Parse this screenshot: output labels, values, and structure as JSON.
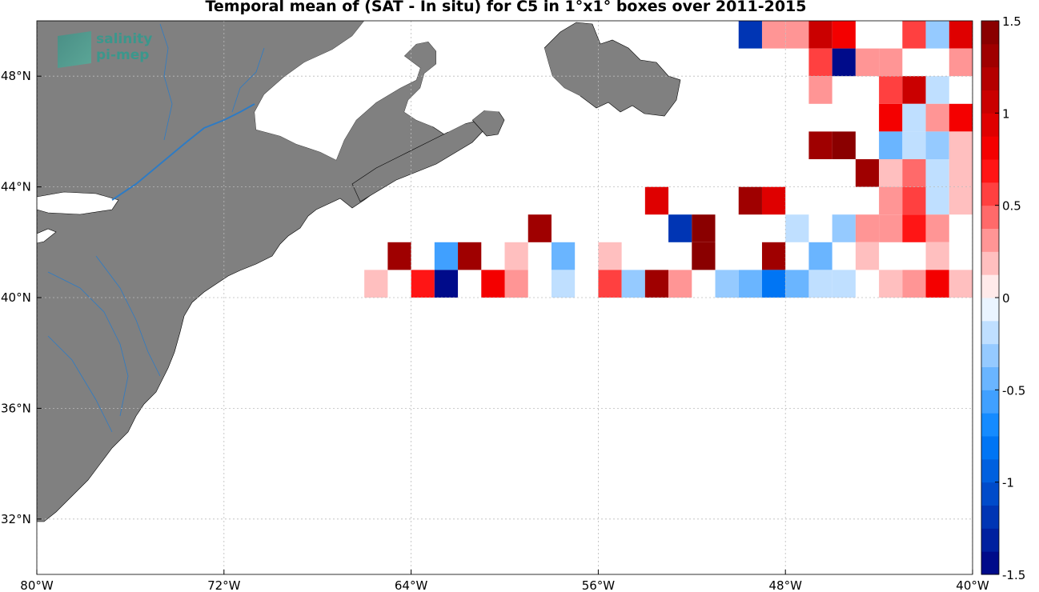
{
  "title": "Temporal mean of (SAT - In situ) for C5 in 1°x1° boxes over 2011-2015",
  "logo": {
    "line1": "salinity",
    "line2": "pi-mep"
  },
  "map": {
    "lon_range": [
      -80,
      -40
    ],
    "lat_range": [
      30,
      50
    ],
    "lon_ticks": [
      {
        "lon": -80,
        "label": "80°W"
      },
      {
        "lon": -72,
        "label": "72°W"
      },
      {
        "lon": -64,
        "label": "64°W"
      },
      {
        "lon": -56,
        "label": "56°W"
      },
      {
        "lon": -48,
        "label": "48°W"
      },
      {
        "lon": -40,
        "label": "40°W"
      }
    ],
    "lat_ticks": [
      {
        "lat": 32,
        "label": "32°N"
      },
      {
        "lat": 36,
        "label": "36°N"
      },
      {
        "lat": 40,
        "label": "40°N"
      },
      {
        "lat": 44,
        "label": "44°N"
      },
      {
        "lat": 48,
        "label": "48°N"
      }
    ],
    "land_color": "#808080",
    "river_color": "#2e7bc4",
    "grid": true
  },
  "colorbar": {
    "min": -1.5,
    "max": 1.5,
    "levels": 24,
    "ticks": [
      {
        "v": 1.5,
        "label": "1.5"
      },
      {
        "v": 1,
        "label": "1"
      },
      {
        "v": 0.5,
        "label": "0.5"
      },
      {
        "v": 0,
        "label": "0"
      },
      {
        "v": -0.5,
        "label": "-0.5"
      },
      {
        "v": -1,
        "label": "-1"
      },
      {
        "v": -1.5,
        "label": "-1.5"
      }
    ],
    "low_color": "#00007f",
    "mid_color": "#ffffff",
    "high_color": "#7f0000"
  },
  "chart_data": {
    "type": "heatmap",
    "title": "Temporal mean of (SAT - In situ) for C5 in 1°x1° boxes over 2011-2015",
    "xlabel": "",
    "ylabel": "",
    "xlim": [
      -80,
      -40
    ],
    "ylim": [
      30,
      50
    ],
    "value_range": [
      -1.5,
      1.5
    ],
    "cell_size_deg": 1,
    "cells": [
      {
        "lon": -49,
        "lat": 49,
        "v": -1.2
      },
      {
        "lon": -48,
        "lat": 49,
        "v": 0.3
      },
      {
        "lon": -47,
        "lat": 49,
        "v": 0.3
      },
      {
        "lon": -46,
        "lat": 49,
        "v": 1.1
      },
      {
        "lon": -45,
        "lat": 49,
        "v": 0.8
      },
      {
        "lon": -42,
        "lat": 49,
        "v": 0.5
      },
      {
        "lon": -41,
        "lat": 49,
        "v": -0.3
      },
      {
        "lon": -40,
        "lat": 49,
        "v": 0.9
      },
      {
        "lon": -46,
        "lat": 48,
        "v": 0.5
      },
      {
        "lon": -45,
        "lat": 48,
        "v": -1.45
      },
      {
        "lon": -44,
        "lat": 48,
        "v": 0.3
      },
      {
        "lon": -43,
        "lat": 48,
        "v": 0.35
      },
      {
        "lon": -40,
        "lat": 48,
        "v": 0.25
      },
      {
        "lon": -46,
        "lat": 47,
        "v": 0.35
      },
      {
        "lon": -43,
        "lat": 47,
        "v": 0.6
      },
      {
        "lon": -42,
        "lat": 47,
        "v": 1.0
      },
      {
        "lon": -41,
        "lat": 47,
        "v": -0.2
      },
      {
        "lon": -43,
        "lat": 46,
        "v": 0.8
      },
      {
        "lon": -42,
        "lat": 46,
        "v": -0.25
      },
      {
        "lon": -41,
        "lat": 46,
        "v": 0.3
      },
      {
        "lon": -40,
        "lat": 46,
        "v": 0.8
      },
      {
        "lon": -46,
        "lat": 45,
        "v": 1.25
      },
      {
        "lon": -45,
        "lat": 45,
        "v": 1.45
      },
      {
        "lon": -43,
        "lat": 45,
        "v": -0.5
      },
      {
        "lon": -42,
        "lat": 45,
        "v": -0.15
      },
      {
        "lon": -41,
        "lat": 45,
        "v": -0.35
      },
      {
        "lon": -40,
        "lat": 45,
        "v": 0.15
      },
      {
        "lon": -44,
        "lat": 44,
        "v": 1.3
      },
      {
        "lon": -43,
        "lat": 44,
        "v": 0.15
      },
      {
        "lon": -42,
        "lat": 44,
        "v": 0.4
      },
      {
        "lon": -41,
        "lat": 44,
        "v": -0.15
      },
      {
        "lon": -40,
        "lat": 44,
        "v": 0.15
      },
      {
        "lon": -53,
        "lat": 43,
        "v": 0.95
      },
      {
        "lon": -49,
        "lat": 43,
        "v": 1.35
      },
      {
        "lon": -48,
        "lat": 43,
        "v": 0.95
      },
      {
        "lon": -43,
        "lat": 43,
        "v": 0.35
      },
      {
        "lon": -42,
        "lat": 43,
        "v": 0.55
      },
      {
        "lon": -41,
        "lat": 43,
        "v": -0.15
      },
      {
        "lon": -40,
        "lat": 43,
        "v": 0.15
      },
      {
        "lon": -58,
        "lat": 42,
        "v": 1.3
      },
      {
        "lon": -52,
        "lat": 42,
        "v": -1.2
      },
      {
        "lon": -51,
        "lat": 42,
        "v": 1.4
      },
      {
        "lon": -47,
        "lat": 42,
        "v": -0.15
      },
      {
        "lon": -45,
        "lat": 42,
        "v": -0.3
      },
      {
        "lon": -44,
        "lat": 42,
        "v": 0.3
      },
      {
        "lon": -43,
        "lat": 42,
        "v": 0.3
      },
      {
        "lon": -42,
        "lat": 42,
        "v": 0.7
      },
      {
        "lon": -41,
        "lat": 42,
        "v": 0.35
      },
      {
        "lon": -64,
        "lat": 41,
        "v": 1.3
      },
      {
        "lon": -62,
        "lat": 41,
        "v": -0.55
      },
      {
        "lon": -61,
        "lat": 41,
        "v": 1.35
      },
      {
        "lon": -59,
        "lat": 41,
        "v": 0.2
      },
      {
        "lon": -57,
        "lat": 41,
        "v": -0.4
      },
      {
        "lon": -55,
        "lat": 41,
        "v": 0.15
      },
      {
        "lon": -51,
        "lat": 41,
        "v": 1.4
      },
      {
        "lon": -48,
        "lat": 41,
        "v": 1.3
      },
      {
        "lon": -46,
        "lat": 41,
        "v": -0.5
      },
      {
        "lon": -44,
        "lat": 41,
        "v": 0.15
      },
      {
        "lon": -41,
        "lat": 41,
        "v": 0.15
      },
      {
        "lon": -65,
        "lat": 40,
        "v": 0.15
      },
      {
        "lon": -63,
        "lat": 40,
        "v": 0.7
      },
      {
        "lon": -62,
        "lat": 40,
        "v": -1.4
      },
      {
        "lon": -60,
        "lat": 40,
        "v": 0.75
      },
      {
        "lon": -59,
        "lat": 40,
        "v": 0.25
      },
      {
        "lon": -57,
        "lat": 40,
        "v": -0.15
      },
      {
        "lon": -55,
        "lat": 40,
        "v": 0.5
      },
      {
        "lon": -54,
        "lat": 40,
        "v": -0.3
      },
      {
        "lon": -53,
        "lat": 40,
        "v": 1.3
      },
      {
        "lon": -52,
        "lat": 40,
        "v": 0.25
      },
      {
        "lon": -50,
        "lat": 40,
        "v": -0.3
      },
      {
        "lon": -49,
        "lat": 40,
        "v": -0.5
      },
      {
        "lon": -48,
        "lat": 40,
        "v": -0.8
      },
      {
        "lon": -47,
        "lat": 40,
        "v": -0.45
      },
      {
        "lon": -46,
        "lat": 40,
        "v": -0.15
      },
      {
        "lon": -45,
        "lat": 40,
        "v": -0.15
      },
      {
        "lon": -43,
        "lat": 40,
        "v": 0.15
      },
      {
        "lon": -42,
        "lat": 40,
        "v": 0.35
      },
      {
        "lon": -41,
        "lat": 40,
        "v": 0.75
      },
      {
        "lon": -40,
        "lat": 40,
        "v": 0.15
      }
    ]
  }
}
